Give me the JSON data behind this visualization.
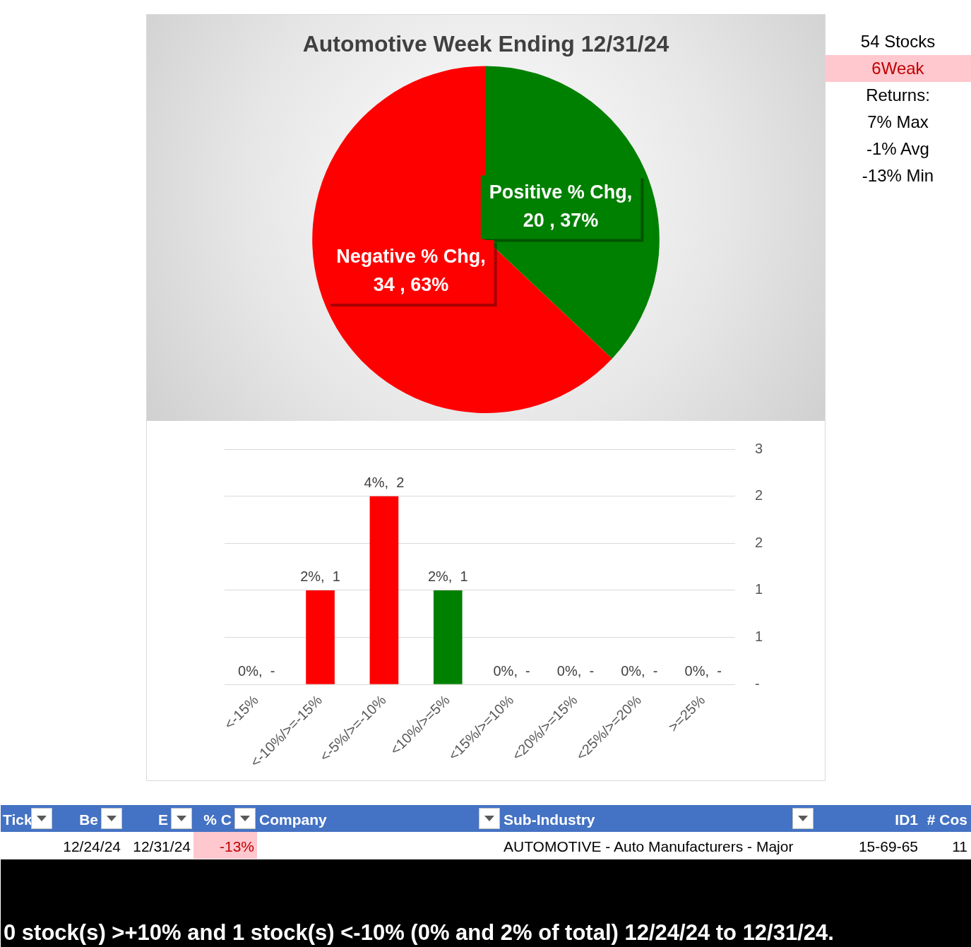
{
  "chart_data": [
    {
      "type": "pie",
      "title": "Automotive Week Ending 12/31/24",
      "categories": [
        "Positive % Chg",
        "Negative % Chg"
      ],
      "values": [
        20,
        34
      ],
      "colors": [
        "#008000",
        "#ff0000"
      ],
      "value_labels": [
        ",\n20 , 37%",
        ",\n34 , 63%"
      ],
      "legend": false
    },
    {
      "type": "bar",
      "categories": [
        "<-15%",
        "<-10%/>=-15%",
        "<-5%/>=-10%",
        "<10%/>=5%",
        "<15%/>=10%",
        "<20%/>=15%",
        "<25%/>=20%",
        ">=25%"
      ],
      "values": [
        0,
        1,
        2,
        1,
        0,
        0,
        0,
        0
      ],
      "colors": [
        "#ff0000",
        "#ff0000",
        "#ff0000",
        "#008000",
        "#008000",
        "#008000",
        "#008000",
        "#008000"
      ],
      "value_labels": [
        "0%,  -",
        "2%,  1",
        "4%,  2",
        "2%,  1",
        "0%,  -",
        "0%,  -",
        "0%,  -",
        "0%,  -"
      ],
      "ylim": [
        0,
        2.5
      ],
      "yticks": [
        {
          "value": 0,
          "label": "-"
        },
        {
          "value": 0.5,
          "label": "1"
        },
        {
          "value": 1,
          "label": "1"
        },
        {
          "value": 1.5,
          "label": "2"
        },
        {
          "value": 2,
          "label": "2"
        },
        {
          "value": 2.5,
          "label": "3"
        }
      ],
      "grid": "y",
      "legend": false
    },
    {
      "type": "other",
      "annotations": [
        "54 Stocks",
        "6Weak",
        "Returns:",
        "7% Max",
        "-1% Avg",
        "-13% Min"
      ]
    },
    {
      "type": "other",
      "categories": [
        "Tick",
        "Be",
        "E",
        "% C",
        "Company",
        "Sub-Industry",
        "ID1",
        "# Cos"
      ],
      "annotations": [
        {
          "text": "12/24/24",
          "x": "Be"
        },
        {
          "text": "12/31/24",
          "x": "E"
        },
        {
          "text": "-13%",
          "x": "% C"
        },
        {
          "text": "AUTOMOTIVE - Auto Manufacturers - Major",
          "x": "Sub-Industry"
        },
        {
          "text": "15-69-65",
          "x": "ID1"
        },
        {
          "text": "11",
          "x": "# Cos"
        },
        "0 stock(s) >+10% and 1 stock(s) <-10% (0% and 2% of total) 12/24/24 to 12/31/24."
      ]
    }
  ]
}
